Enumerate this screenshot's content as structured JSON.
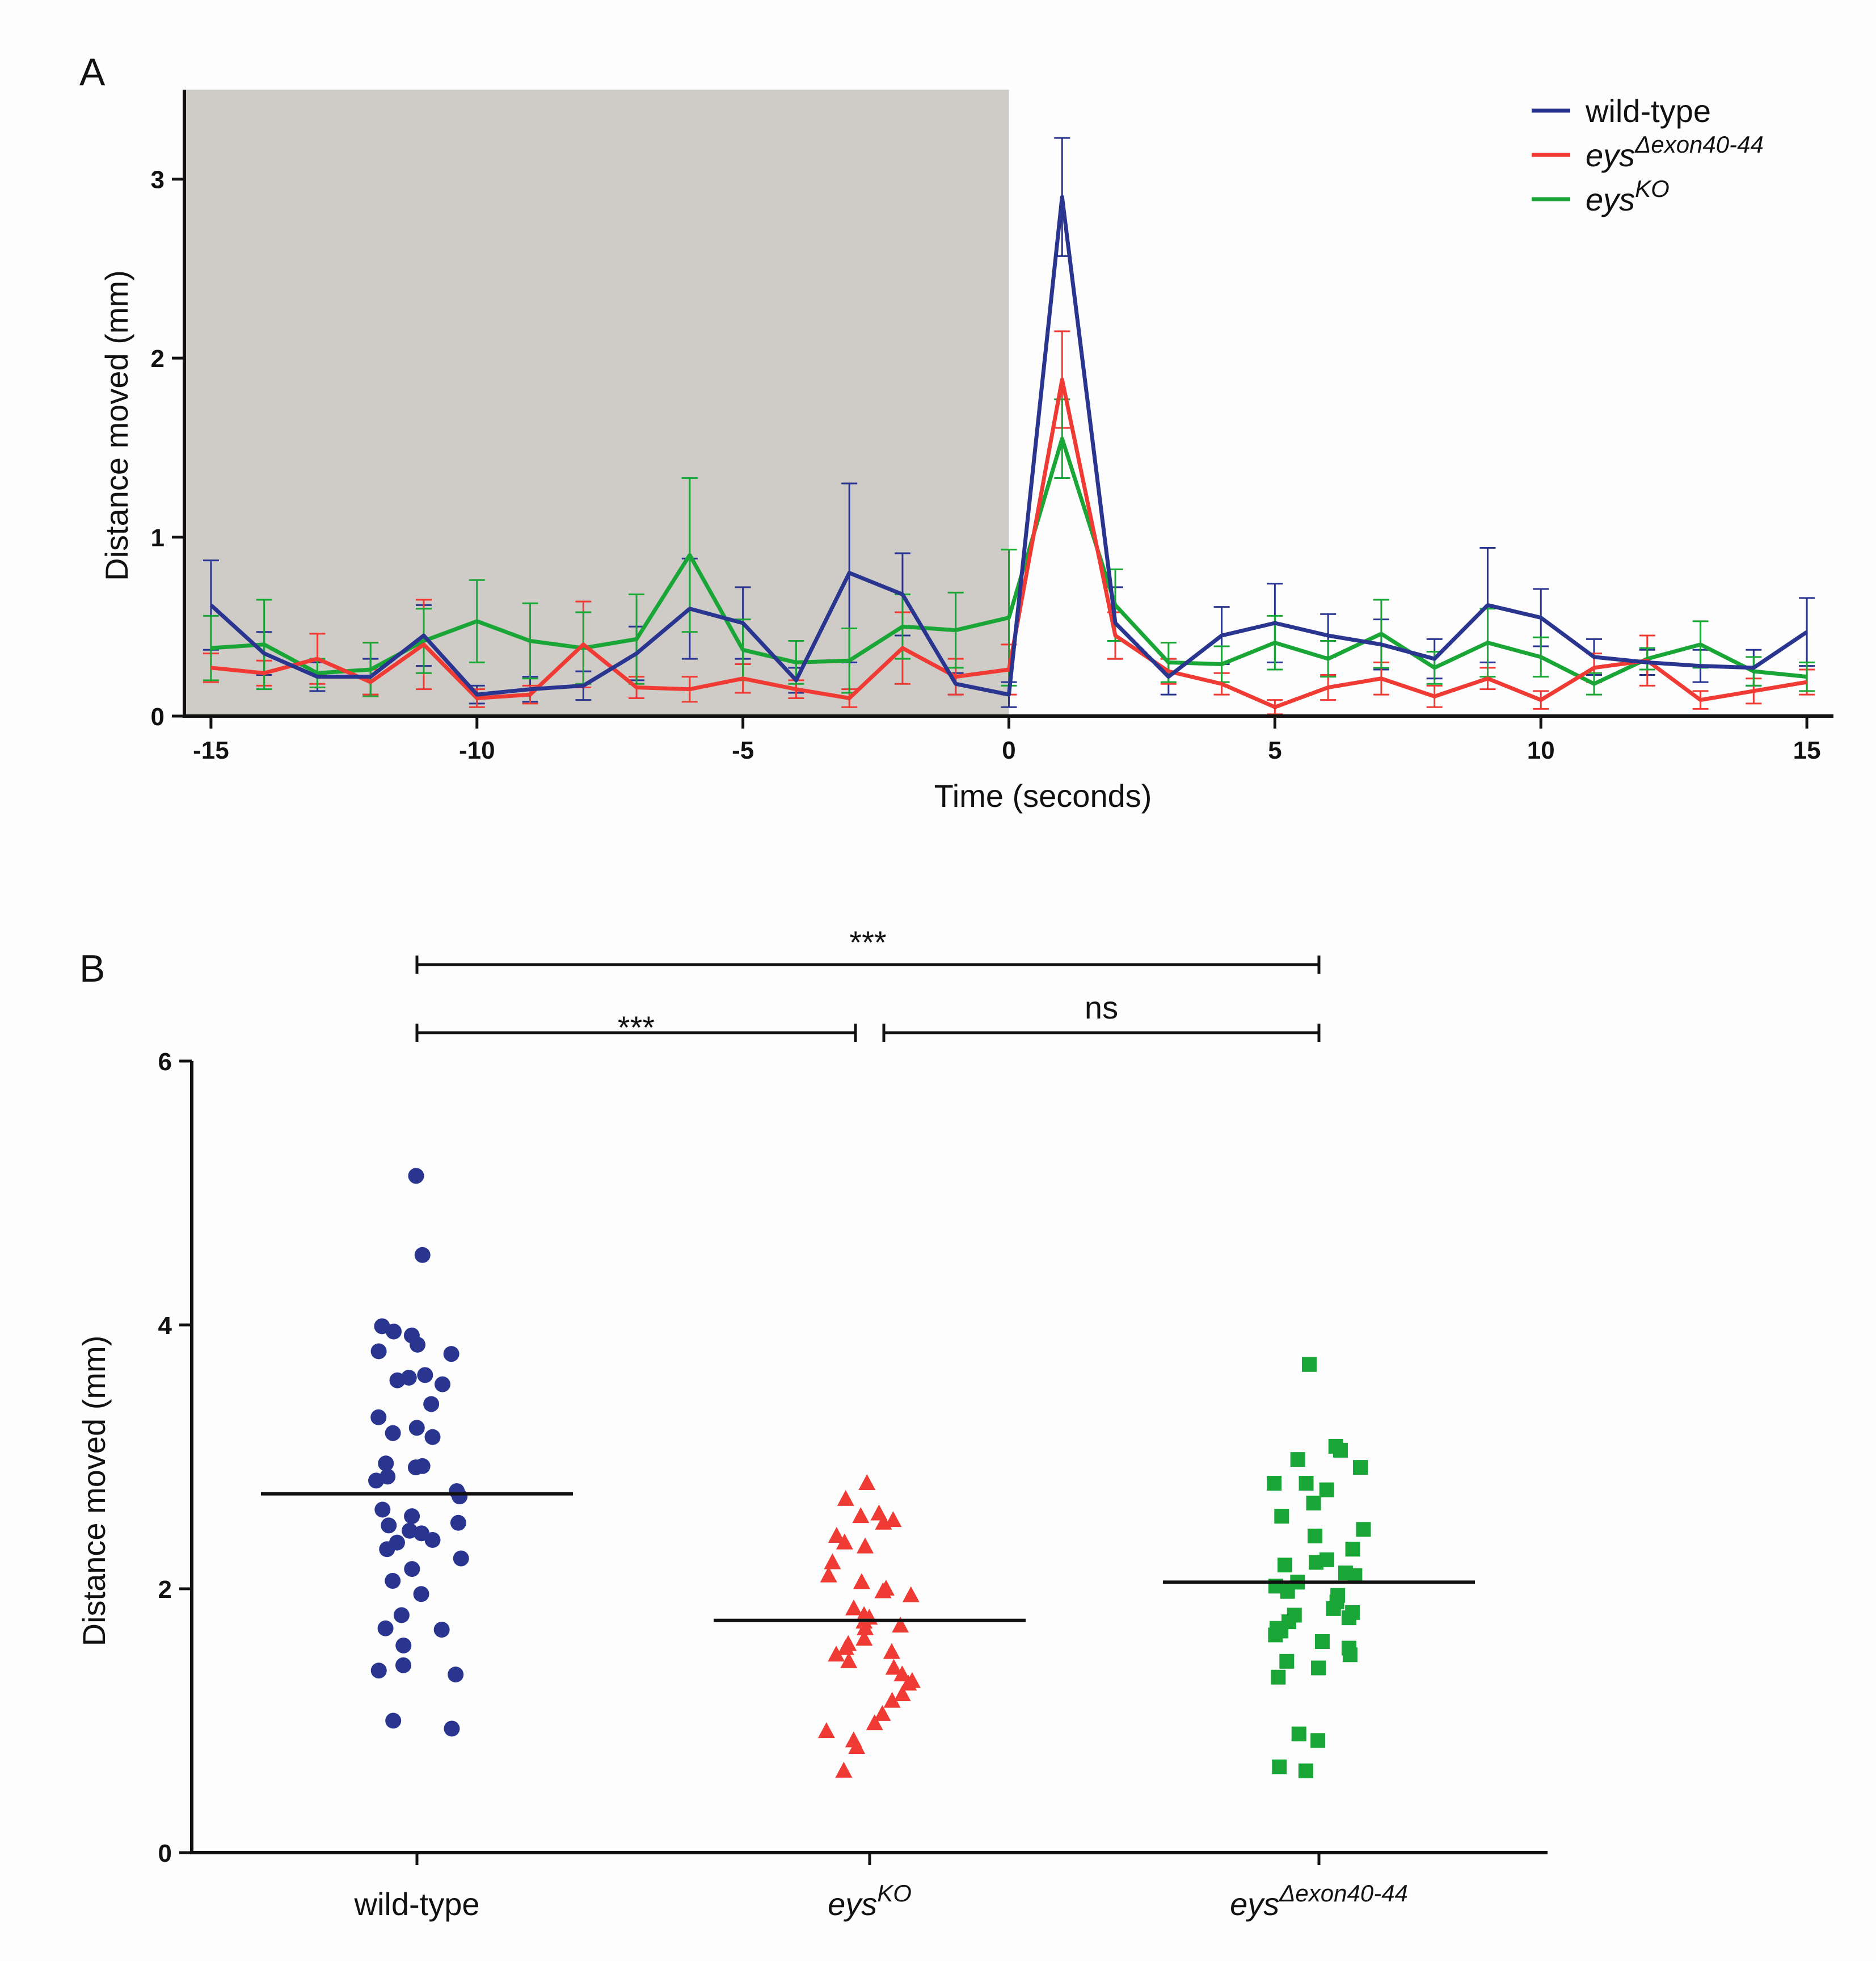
{
  "colors": {
    "wild_type": "#2a3590",
    "exon": "#f03a34",
    "ko": "#1aa637",
    "shade": "#cfcbc6",
    "axis": "#111111"
  },
  "chart_data": [
    {
      "type": "line",
      "panel": "A",
      "xlabel": "Time (seconds)",
      "ylabel": "Distance moved (mm)",
      "xlim": [
        -15.5,
        15.5
      ],
      "ylim": [
        0,
        3.5
      ],
      "x_ticks": [
        -15,
        -10,
        -5,
        0,
        5,
        10,
        15
      ],
      "x_tick_labels": [
        "-15",
        "-10",
        "-5",
        "0",
        "5",
        "10",
        "15"
      ],
      "y_ticks": [
        0,
        1,
        2,
        3
      ],
      "y_tick_labels": [
        "0",
        "1",
        "2",
        "3"
      ],
      "shaded_region": [
        -15.5,
        0
      ],
      "legend_position": "top-right",
      "x": [
        -15,
        -14,
        -13,
        -12,
        -11,
        -10,
        -9,
        -8,
        -7,
        -6,
        -5,
        -4,
        -3,
        -2,
        -1,
        0,
        1,
        2,
        3,
        4,
        5,
        6,
        7,
        8,
        9,
        10,
        11,
        12,
        13,
        14,
        15
      ],
      "series": [
        {
          "name": "wild-type",
          "legend": {
            "base": "wild-type",
            "sup": ""
          },
          "color_key": "wild_type",
          "values": [
            0.62,
            0.35,
            0.22,
            0.22,
            0.45,
            0.12,
            0.15,
            0.17,
            0.35,
            0.6,
            0.52,
            0.2,
            0.8,
            0.68,
            0.18,
            0.12,
            2.9,
            0.52,
            0.22,
            0.45,
            0.52,
            0.45,
            0.4,
            0.32,
            0.62,
            0.55,
            0.33,
            0.3,
            0.28,
            0.27,
            0.47
          ],
          "errors": [
            0.25,
            0.12,
            0.08,
            0.1,
            0.17,
            0.05,
            0.07,
            0.08,
            0.15,
            0.28,
            0.2,
            0.07,
            0.5,
            0.23,
            0.06,
            0.07,
            0.33,
            0.2,
            0.1,
            0.16,
            0.22,
            0.12,
            0.14,
            0.11,
            0.32,
            0.16,
            0.1,
            0.07,
            0.09,
            0.1,
            0.19
          ]
        },
        {
          "name": "eysΔexon40-44",
          "legend": {
            "base": "eys",
            "sup": "Δexon40-44"
          },
          "color_key": "exon",
          "values": [
            0.27,
            0.24,
            0.32,
            0.19,
            0.4,
            0.1,
            0.12,
            0.4,
            0.16,
            0.15,
            0.21,
            0.15,
            0.1,
            0.38,
            0.22,
            0.26,
            1.88,
            0.45,
            0.25,
            0.18,
            0.05,
            0.16,
            0.21,
            0.11,
            0.21,
            0.09,
            0.27,
            0.31,
            0.09,
            0.14,
            0.19
          ],
          "errors": [
            0.08,
            0.07,
            0.14,
            0.07,
            0.25,
            0.05,
            0.05,
            0.24,
            0.06,
            0.07,
            0.08,
            0.05,
            0.05,
            0.2,
            0.1,
            0.14,
            0.27,
            0.13,
            0.07,
            0.06,
            0.04,
            0.07,
            0.09,
            0.06,
            0.06,
            0.05,
            0.08,
            0.14,
            0.05,
            0.07,
            0.07
          ]
        },
        {
          "name": "eysKO",
          "legend": {
            "base": "eys",
            "sup": "KO"
          },
          "color_key": "ko",
          "values": [
            0.38,
            0.4,
            0.24,
            0.26,
            0.42,
            0.53,
            0.42,
            0.38,
            0.43,
            0.9,
            0.37,
            0.3,
            0.31,
            0.5,
            0.48,
            0.55,
            1.55,
            0.62,
            0.3,
            0.29,
            0.41,
            0.32,
            0.46,
            0.27,
            0.41,
            0.33,
            0.18,
            0.32,
            0.4,
            0.25,
            0.22
          ],
          "errors": [
            0.18,
            0.25,
            0.08,
            0.15,
            0.18,
            0.23,
            0.21,
            0.2,
            0.25,
            0.43,
            0.17,
            0.12,
            0.18,
            0.18,
            0.21,
            0.38,
            0.22,
            0.2,
            0.11,
            0.1,
            0.15,
            0.1,
            0.19,
            0.09,
            0.19,
            0.11,
            0.06,
            0.06,
            0.13,
            0.08,
            0.08
          ]
        }
      ]
    },
    {
      "type": "scatter",
      "panel": "B",
      "ylabel": "Distance moved (mm)",
      "ylim": [
        0,
        6
      ],
      "y_ticks": [
        0,
        2,
        4,
        6
      ],
      "y_tick_labels": [
        "0",
        "2",
        "4",
        "6"
      ],
      "categories": [
        {
          "name": "wild-type",
          "label": {
            "base": "wild-type",
            "sup": "",
            "italic": false
          },
          "color_key": "wild_type",
          "marker": "circle",
          "mean": 2.72,
          "values": [
            5.13,
            4.53,
            3.99,
            3.95,
            3.92,
            3.85,
            3.8,
            3.78,
            3.62,
            3.6,
            3.58,
            3.55,
            3.4,
            3.3,
            3.22,
            3.18,
            3.15,
            2.95,
            2.93,
            2.92,
            2.85,
            2.82,
            2.74,
            2.7,
            2.6,
            2.55,
            2.5,
            2.48,
            2.44,
            2.42,
            2.37,
            2.35,
            2.3,
            2.23,
            2.15,
            2.06,
            1.96,
            1.8,
            1.7,
            1.69,
            1.57,
            1.42,
            1.38,
            1.35,
            1.0,
            0.94
          ]
        },
        {
          "name": "eysKO",
          "label": {
            "base": "eys",
            "sup": "KO",
            "italic": true
          },
          "color_key": "exon",
          "marker": "triangle",
          "mean": 1.76,
          "values": [
            2.8,
            2.68,
            2.57,
            2.55,
            2.52,
            2.5,
            2.4,
            2.35,
            2.32,
            2.2,
            2.1,
            2.05,
            2.0,
            1.98,
            1.95,
            1.85,
            1.8,
            1.78,
            1.75,
            1.72,
            1.7,
            1.62,
            1.58,
            1.55,
            1.52,
            1.5,
            1.45,
            1.4,
            1.35,
            1.3,
            1.28,
            1.2,
            1.15,
            1.05,
            0.98,
            0.92,
            0.85,
            0.8,
            0.62
          ]
        },
        {
          "name": "eysΔexon40-44",
          "label": {
            "base": "eys",
            "sup": "Δexon40-44",
            "italic": true
          },
          "color_key": "ko",
          "marker": "square",
          "mean": 2.05,
          "values": [
            3.7,
            3.08,
            3.05,
            2.98,
            2.92,
            2.8,
            2.8,
            2.75,
            2.65,
            2.55,
            2.45,
            2.4,
            2.3,
            2.22,
            2.2,
            2.18,
            2.12,
            2.1,
            2.05,
            2.02,
            1.98,
            1.95,
            1.9,
            1.85,
            1.82,
            1.8,
            1.78,
            1.75,
            1.7,
            1.68,
            1.65,
            1.6,
            1.55,
            1.5,
            1.45,
            1.4,
            1.33,
            0.9,
            0.85,
            0.65,
            0.62
          ]
        }
      ],
      "comparisons": [
        {
          "from": 0,
          "to": 2,
          "label": "***",
          "level": 2
        },
        {
          "from": 0,
          "to": 1,
          "label": "***",
          "level": 1
        },
        {
          "from": 1,
          "to": 2,
          "label": "ns",
          "level": 1
        }
      ]
    }
  ],
  "panels": {
    "a_label": "A",
    "b_label": "B"
  }
}
